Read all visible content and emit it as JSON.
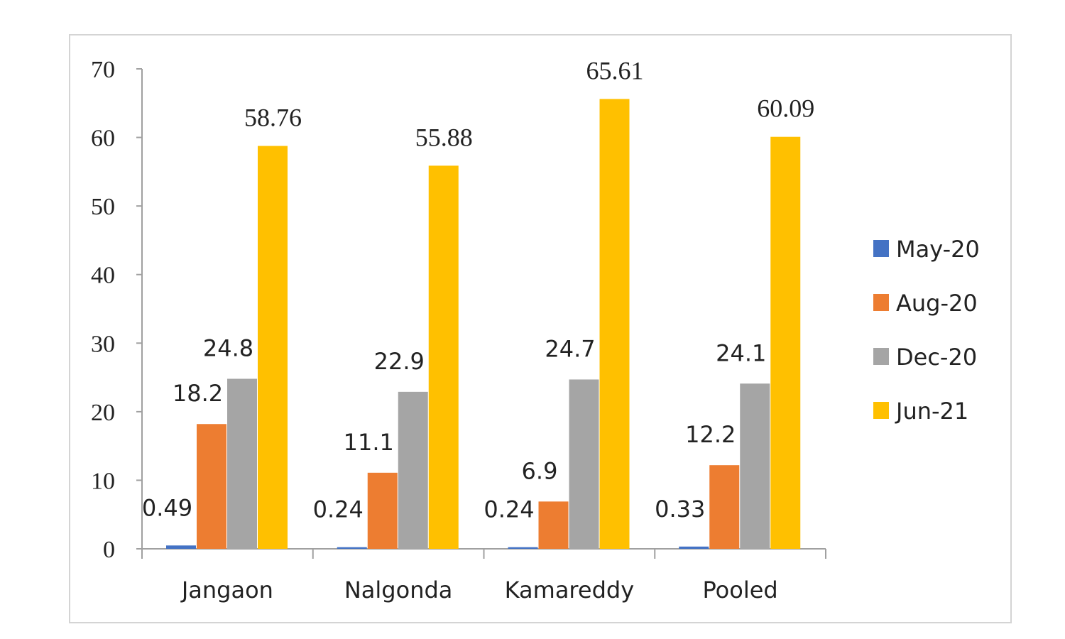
{
  "chart_data": {
    "type": "bar",
    "title": "",
    "xlabel": "",
    "ylabel": "",
    "ylim": [
      0,
      70
    ],
    "yticks": [
      0,
      10,
      20,
      30,
      40,
      50,
      60,
      70
    ],
    "grid": false,
    "legend_position": "right",
    "categories": [
      "Jangaon",
      "Nalgonda",
      "Kamareddy",
      "Pooled"
    ],
    "series": [
      {
        "name": "May-20",
        "color": "#4472C4",
        "values": [
          0.49,
          0.24,
          0.24,
          0.33
        ]
      },
      {
        "name": "Aug-20",
        "color": "#ED7D31",
        "values": [
          18.2,
          11.1,
          6.9,
          12.2
        ]
      },
      {
        "name": "Dec-20",
        "color": "#A5A5A5",
        "values": [
          24.8,
          22.9,
          24.7,
          24.1
        ]
      },
      {
        "name": "Jun-21",
        "color": "#FFC000",
        "values": [
          58.76,
          55.88,
          65.61,
          60.09
        ]
      }
    ]
  }
}
